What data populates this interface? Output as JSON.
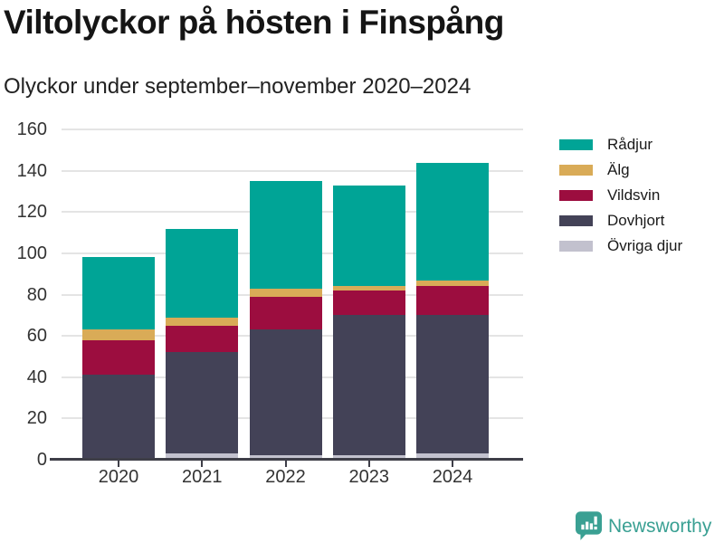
{
  "header": {
    "title": "Viltolyckor på hösten i Finspång",
    "subtitle": "Olyckor under september–november 2020–2024"
  },
  "chart_data": {
    "type": "bar",
    "subtype": "stacked-vertical",
    "title": "Viltolyckor på hösten i Finspång",
    "subtitle": "Olyckor under september–november 2020–2024",
    "categories": [
      "2020",
      "2021",
      "2022",
      "2023",
      "2024"
    ],
    "series": [
      {
        "name": "Rådjur",
        "color": "#00a496",
        "values": [
          35,
          43,
          52,
          49,
          57
        ]
      },
      {
        "name": "Älg",
        "color": "#d9ab57",
        "values": [
          5,
          4,
          4,
          2,
          3
        ]
      },
      {
        "name": "Vildsvin",
        "color": "#9c0d3f",
        "values": [
          17,
          13,
          16,
          12,
          14
        ]
      },
      {
        "name": "Dovhjort",
        "color": "#434257",
        "values": [
          40,
          49,
          61,
          68,
          67
        ]
      },
      {
        "name": "Övriga djur",
        "color": "#c2c1ce",
        "values": [
          1,
          3,
          2,
          2,
          3
        ]
      }
    ],
    "stack_order_bottom_to_top": [
      "Övriga djur",
      "Dovhjort",
      "Vildsvin",
      "Älg",
      "Rådjur"
    ],
    "totals": [
      98,
      112,
      135,
      133,
      144
    ],
    "xlabel": "",
    "ylabel": "",
    "ylim": [
      0,
      160
    ],
    "ytick_step": 20,
    "yticks": [
      0,
      20,
      40,
      60,
      80,
      100,
      120,
      140,
      160
    ],
    "grid": true,
    "legend_position": "right"
  },
  "colors": {
    "axis_line": "#3e3e48",
    "gridline": "#e4e4e4",
    "tick_label": "#333333",
    "title_text": "#151515",
    "brand_teal": "#3aa093"
  },
  "footer": {
    "brand": "Newsworthy",
    "logo_icon": "bar-chart-speech-bubble-icon"
  }
}
